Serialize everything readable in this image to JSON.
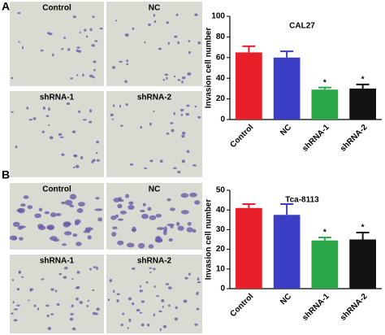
{
  "panels": [
    {
      "label": "A",
      "images": [
        "Control",
        "NC",
        "shRNA-1",
        "shRNA-2"
      ]
    },
    {
      "label": "B",
      "images": [
        "Control",
        "NC",
        "shRNA-1",
        "shRNA-2"
      ]
    }
  ],
  "chart_data": [
    {
      "type": "bar",
      "title": "CAL27",
      "y_label": "Invasion cell number",
      "categories": [
        "Control",
        "NC",
        "shRNA-1",
        "shRNA-2"
      ],
      "values": [
        65,
        60,
        29,
        30
      ],
      "errors": [
        6,
        6,
        2,
        4
      ],
      "colors": [
        "#e8202a",
        "#3a3fc4",
        "#2aa84a",
        "#111111"
      ],
      "significance": [
        null,
        null,
        "*",
        "*"
      ],
      "ylim": [
        0,
        100
      ],
      "yticks": [
        0,
        20,
        40,
        60,
        80,
        100
      ]
    },
    {
      "type": "bar",
      "title": "Tca-8113",
      "y_label": "Invasion cell number",
      "categories": [
        "Control",
        "NC",
        "shRNA-1",
        "shRNA-2"
      ],
      "values": [
        41,
        37.5,
        24.5,
        25
      ],
      "errors": [
        2,
        5.5,
        1.5,
        3.5
      ],
      "colors": [
        "#e8202a",
        "#3a3fc4",
        "#2aa84a",
        "#111111"
      ],
      "significance": [
        null,
        null,
        "*",
        "*"
      ],
      "ylim": [
        0,
        50
      ],
      "yticks": [
        0,
        10,
        20,
        30,
        40,
        50
      ]
    }
  ]
}
